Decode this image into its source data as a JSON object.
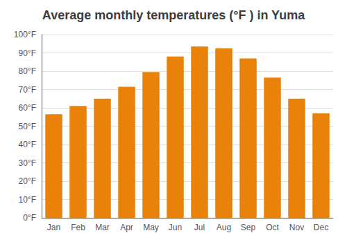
{
  "chart_data": {
    "type": "bar",
    "title": "Average monthly temperatures (°F ) in Yuma",
    "categories": [
      "Jan",
      "Feb",
      "Mar",
      "Apr",
      "May",
      "Jun",
      "Jul",
      "Aug",
      "Sep",
      "Oct",
      "Nov",
      "Dec"
    ],
    "values": [
      56.5,
      61.0,
      65.0,
      71.5,
      79.5,
      88.0,
      93.5,
      92.5,
      87.0,
      76.5,
      65.0,
      57.0
    ],
    "color": "#E8820A",
    "ylim": [
      0,
      100
    ],
    "yticks": [
      {
        "value": 0,
        "label": "0°F"
      },
      {
        "value": 10,
        "label": "10°F"
      },
      {
        "value": 20,
        "label": "20°F"
      },
      {
        "value": 30,
        "label": "30°F"
      },
      {
        "value": 40,
        "label": "40°F"
      },
      {
        "value": 50,
        "label": "50°F"
      },
      {
        "value": 60,
        "label": "60°F"
      },
      {
        "value": 70,
        "label": "70°F"
      },
      {
        "value": 80,
        "label": "80°F"
      },
      {
        "value": 90,
        "label": "90°F"
      },
      {
        "value": 100,
        "label": "100°F"
      }
    ],
    "grid": true
  }
}
